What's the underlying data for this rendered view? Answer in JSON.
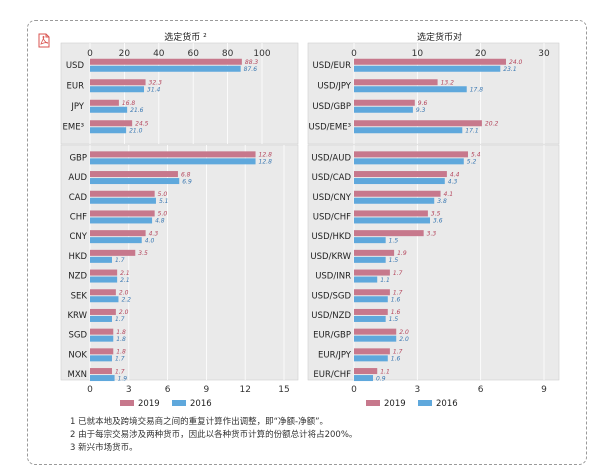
{
  "colors": {
    "y2019": "#c7788c",
    "y2016": "#5fa8dc",
    "panel": "#eaeaea"
  },
  "icons": {
    "pdf": "pdf-icon"
  },
  "legend": {
    "y2019": "2019",
    "y2016": "2016"
  },
  "notes": [
    "1 已就本地及跨境交易商之间的重复计算作出调整，即“净额-净额”。",
    "2 由于每宗交易涉及两种货币，因此以各种货币计算的份额总计将占200%。",
    "3 新兴市场货币。"
  ],
  "chart_data": [
    {
      "type": "bar",
      "orientation": "horizontal",
      "title": "选定货币 ²",
      "axis_position": "top",
      "xlim": [
        0,
        100
      ],
      "ticks": [
        0,
        20,
        40,
        60,
        80,
        100
      ],
      "categories": [
        "USD",
        "EUR",
        "JPY",
        "EME³"
      ],
      "series": [
        {
          "name": "2019",
          "values": [
            88.3,
            32.3,
            16.8,
            24.5
          ],
          "labels": [
            "88.3",
            "32.3",
            "16.8",
            "24.5"
          ]
        },
        {
          "name": "2016",
          "values": [
            87.6,
            31.4,
            21.6,
            21.0
          ],
          "labels": [
            "87.6",
            "31.4",
            "21.6",
            "21.0"
          ]
        }
      ]
    },
    {
      "type": "bar",
      "orientation": "horizontal",
      "title": "选定货币对",
      "axis_position": "top",
      "xlim": [
        0,
        30
      ],
      "ticks": [
        0,
        10,
        20,
        30
      ],
      "categories": [
        "USD/EUR",
        "USD/JPY",
        "USD/GBP",
        "USD/EME³"
      ],
      "series": [
        {
          "name": "2019",
          "values": [
            24.0,
            13.2,
            9.6,
            20.2
          ],
          "labels": [
            "24.0",
            "13.2",
            "9.6",
            "20.2"
          ]
        },
        {
          "name": "2016",
          "values": [
            23.1,
            17.8,
            9.3,
            17.1
          ],
          "labels": [
            "23.1",
            "17.8",
            "9.3",
            "17.1"
          ]
        }
      ]
    },
    {
      "type": "bar",
      "orientation": "horizontal",
      "title": "",
      "axis_position": "bottom",
      "xlim": [
        0,
        15
      ],
      "ticks": [
        0,
        3,
        6,
        9,
        12,
        15
      ],
      "categories": [
        "GBP",
        "AUD",
        "CAD",
        "CHF",
        "CNY",
        "HKD",
        "NZD",
        "SEK",
        "KRW",
        "SGD",
        "NOK",
        "MXN"
      ],
      "series": [
        {
          "name": "2019",
          "values": [
            12.8,
            6.8,
            5.0,
            5.0,
            4.3,
            3.5,
            2.1,
            2.0,
            2.0,
            1.8,
            1.8,
            1.7
          ],
          "labels": [
            "12.8",
            "6.8",
            "5.0",
            "5.0",
            "4.3",
            "3.5",
            "2.1",
            "2.0",
            "2.0",
            "1.8",
            "1.8",
            "1.7"
          ]
        },
        {
          "name": "2016",
          "values": [
            12.8,
            6.9,
            5.1,
            4.8,
            4.0,
            1.7,
            2.1,
            2.2,
            1.7,
            1.8,
            1.7,
            1.9
          ],
          "labels": [
            "12.8",
            "6.9",
            "5.1",
            "4.8",
            "4.0",
            "1.7",
            "2.1",
            "2.2",
            "1.7",
            "1.8",
            "1.7",
            "1.9"
          ]
        }
      ]
    },
    {
      "type": "bar",
      "orientation": "horizontal",
      "title": "",
      "axis_position": "bottom",
      "xlim": [
        0,
        9
      ],
      "ticks": [
        0,
        3,
        6,
        9
      ],
      "categories": [
        "USD/AUD",
        "USD/CAD",
        "USD/CNY",
        "USD/CHF",
        "USD/HKD",
        "USD/KRW",
        "USD/INR",
        "USD/SGD",
        "USD/NZD",
        "EUR/GBP",
        "EUR/JPY",
        "EUR/CHF"
      ],
      "series": [
        {
          "name": "2019",
          "values": [
            5.4,
            4.4,
            4.1,
            3.5,
            3.3,
            1.9,
            1.7,
            1.7,
            1.6,
            2.0,
            1.7,
            1.1
          ],
          "labels": [
            "5.4",
            "4.4",
            "4.1",
            "3.5",
            "3.3",
            "1.9",
            "1.7",
            "1.7",
            "1.6",
            "2.0",
            "1.7",
            "1.1"
          ]
        },
        {
          "name": "2016",
          "values": [
            5.2,
            4.3,
            3.8,
            3.6,
            1.5,
            1.5,
            1.1,
            1.6,
            1.5,
            2.0,
            1.6,
            0.9
          ],
          "labels": [
            "5.2",
            "4.3",
            "3.8",
            "3.6",
            "1.5",
            "1.5",
            "1.1",
            "1.6",
            "1.5",
            "2.0",
            "1.6",
            "0.9"
          ]
        }
      ]
    }
  ]
}
